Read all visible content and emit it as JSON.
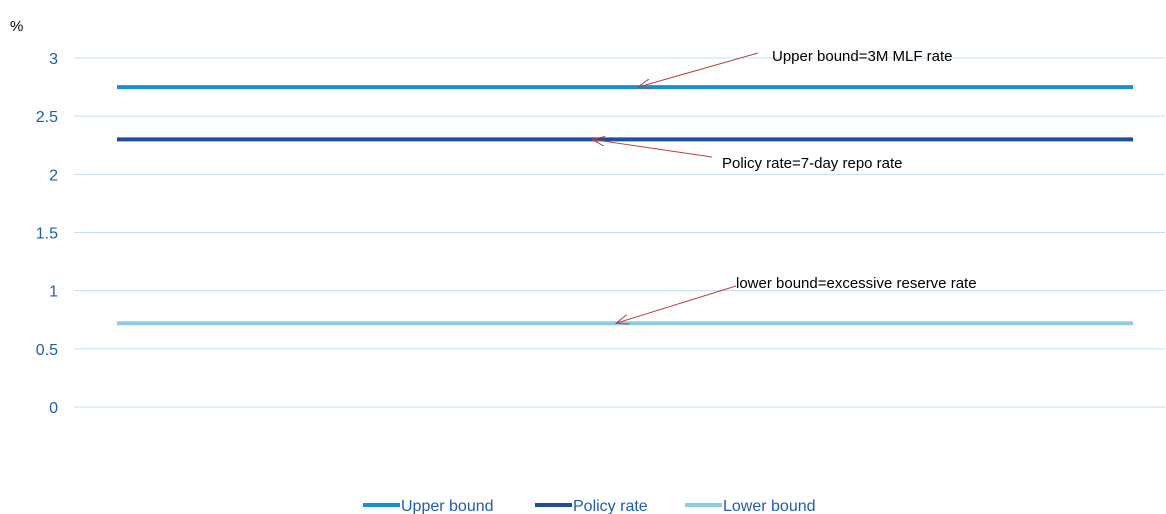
{
  "chart_data": {
    "type": "line",
    "ylabel": "%",
    "ylim": [
      0,
      3
    ],
    "yticks": [
      0,
      0.5,
      1,
      1.5,
      2,
      2.5,
      3
    ],
    "ytick_labels": [
      "0",
      "0.5",
      "1",
      "1.5",
      "2",
      "2.5",
      "3"
    ],
    "grid": true,
    "legend_position": "bottom-center",
    "series": [
      {
        "name": "Upper bound",
        "value": 2.75,
        "color": "#1a8fd1"
      },
      {
        "name": "Policy rate",
        "value": 2.3,
        "color": "#1e4f98"
      },
      {
        "name": "Lower bound",
        "value": 0.72,
        "color": "#8ecbe8"
      }
    ],
    "annotations": [
      {
        "text": "Upper bound=3M MLF rate",
        "points_to": "Upper bound"
      },
      {
        "text": "Policy rate=7-day repo rate",
        "points_to": "Policy rate"
      },
      {
        "text": "lower bound=excessive reserve  rate",
        "points_to": "Lower bound"
      }
    ],
    "colors": {
      "grid": "#bfe0f2",
      "tick_text": "#1f5fa8",
      "arrow": "#b84040"
    }
  }
}
